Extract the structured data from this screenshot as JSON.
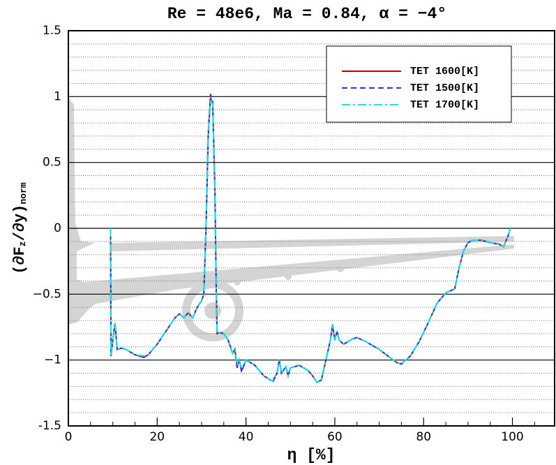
{
  "chart_data": {
    "type": "line",
    "title": "Re = 48e6, Ma = 0.84, α = −4°",
    "xlabel": "η [%]",
    "ylabel_parts": [
      "(∂F",
      "z",
      "/∂y)",
      "norm"
    ],
    "x": [
      9.5,
      9.6,
      10,
      10.5,
      11,
      12,
      13,
      15,
      17,
      18,
      20,
      22,
      24,
      25,
      26,
      27,
      28,
      29,
      30,
      30.5,
      31,
      31.5,
      32,
      32.5,
      33,
      33.3,
      33.5,
      34,
      35,
      36,
      37,
      37.5,
      38,
      38.5,
      39,
      40,
      41,
      42,
      43,
      44,
      45,
      46,
      47,
      47.5,
      48,
      49,
      49.5,
      50,
      51,
      52,
      53,
      54,
      55,
      56,
      57,
      58,
      59,
      59.5,
      60,
      60.5,
      61,
      62,
      63,
      64,
      65,
      67,
      70,
      72,
      74,
      75,
      77,
      79,
      81,
      83,
      85,
      87,
      88,
      89,
      90,
      91,
      93,
      95,
      97,
      98,
      99,
      99.5
    ],
    "series": [
      {
        "name": "TET 1600[K]",
        "color": "#c00000",
        "dash": "solid",
        "values": [
          0,
          -0.97,
          -0.85,
          -0.72,
          -0.92,
          -0.91,
          -0.92,
          -0.96,
          -0.98,
          -0.96,
          -0.88,
          -0.78,
          -0.68,
          -0.65,
          -0.68,
          -0.64,
          -0.68,
          -0.6,
          -0.55,
          -0.5,
          0,
          0.7,
          0.99,
          0.95,
          0.3,
          -0.45,
          -0.8,
          -0.79,
          -0.8,
          -0.85,
          -0.95,
          -0.92,
          -1.05,
          -1.0,
          -1.08,
          -1.0,
          -1.02,
          -1.04,
          -1.08,
          -1.12,
          -1.14,
          -1.16,
          -1.1,
          -1.0,
          -1.1,
          -1.05,
          -1.12,
          -1.06,
          -1.05,
          -1.04,
          -1.06,
          -1.08,
          -1.12,
          -1.17,
          -1.15,
          -1.0,
          -0.85,
          -0.73,
          -0.85,
          -0.78,
          -0.85,
          -0.88,
          -0.86,
          -0.84,
          -0.83,
          -0.86,
          -0.92,
          -0.97,
          -1.02,
          -1.03,
          -0.97,
          -0.86,
          -0.72,
          -0.57,
          -0.49,
          -0.46,
          -0.3,
          -0.17,
          -0.11,
          -0.09,
          -0.09,
          -0.11,
          -0.12,
          -0.14,
          -0.06,
          0
        ]
      },
      {
        "name": "TET 1500[K]",
        "color": "#3030e0",
        "dash": "dash",
        "values": [
          0,
          -0.97,
          -0.85,
          -0.72,
          -0.92,
          -0.91,
          -0.92,
          -0.96,
          -0.98,
          -0.96,
          -0.88,
          -0.78,
          -0.68,
          -0.65,
          -0.68,
          -0.64,
          -0.68,
          -0.6,
          -0.55,
          -0.5,
          0,
          0.72,
          1.02,
          0.97,
          0.3,
          -0.45,
          -0.8,
          -0.79,
          -0.8,
          -0.85,
          -0.95,
          -0.92,
          -1.06,
          -1.0,
          -1.09,
          -1.0,
          -1.02,
          -1.04,
          -1.08,
          -1.12,
          -1.14,
          -1.17,
          -1.1,
          -1.0,
          -1.1,
          -1.05,
          -1.12,
          -1.06,
          -1.05,
          -1.04,
          -1.06,
          -1.08,
          -1.12,
          -1.17,
          -1.15,
          -1.0,
          -0.85,
          -0.73,
          -0.85,
          -0.78,
          -0.85,
          -0.88,
          -0.86,
          -0.84,
          -0.83,
          -0.86,
          -0.92,
          -0.97,
          -1.02,
          -1.03,
          -0.97,
          -0.86,
          -0.72,
          -0.57,
          -0.49,
          -0.46,
          -0.3,
          -0.17,
          -0.11,
          -0.09,
          -0.09,
          -0.11,
          -0.12,
          -0.14,
          -0.06,
          0
        ]
      },
      {
        "name": "TET 1700[K]",
        "color": "#00e5ee",
        "dash": "dashdot",
        "values": [
          0,
          -0.97,
          -0.85,
          -0.72,
          -0.92,
          -0.91,
          -0.92,
          -0.96,
          -0.97,
          -0.96,
          -0.88,
          -0.78,
          -0.68,
          -0.65,
          -0.68,
          -0.64,
          -0.68,
          -0.6,
          -0.55,
          -0.5,
          0,
          0.69,
          0.98,
          0.94,
          0.3,
          -0.45,
          -0.8,
          -0.79,
          -0.8,
          -0.85,
          -0.95,
          -0.92,
          -1.04,
          -1.0,
          -1.07,
          -1.0,
          -1.02,
          -1.04,
          -1.08,
          -1.12,
          -1.14,
          -1.16,
          -1.1,
          -1.0,
          -1.1,
          -1.05,
          -1.12,
          -1.06,
          -1.05,
          -1.04,
          -1.06,
          -1.08,
          -1.12,
          -1.17,
          -1.15,
          -1.0,
          -0.85,
          -0.73,
          -0.85,
          -0.78,
          -0.85,
          -0.88,
          -0.86,
          -0.84,
          -0.83,
          -0.86,
          -0.92,
          -0.97,
          -1.02,
          -1.03,
          -0.97,
          -0.86,
          -0.72,
          -0.57,
          -0.49,
          -0.46,
          -0.3,
          -0.17,
          -0.11,
          -0.09,
          -0.09,
          -0.11,
          -0.12,
          -0.14,
          -0.06,
          0
        ]
      }
    ],
    "xlim": [
      0,
      109.5
    ],
    "ylim": [
      -1.5,
      1.5
    ],
    "xticks": [
      0,
      20,
      40,
      60,
      80,
      100
    ],
    "yticks": [
      {
        "value": -1.5,
        "label": "-1.5"
      },
      {
        "value": -1,
        "label": "−1"
      },
      {
        "value": -0.5,
        "label": "−0.5"
      },
      0,
      0.5,
      1,
      1.5
    ],
    "y_minor_ticks": [
      -1.4,
      -1.3,
      -1.2,
      -1.1,
      -0.9,
      -0.8,
      -0.7,
      -0.6,
      -0.4,
      -0.3,
      -0.2,
      -0.1,
      0.1,
      0.2,
      0.3,
      0.4,
      0.6,
      0.7,
      0.8,
      0.9,
      1.1,
      1.2,
      1.3,
      1.4
    ],
    "x_minor_ticks": [
      5,
      10,
      15,
      25,
      30,
      35,
      45,
      50,
      55,
      65,
      70,
      75,
      85,
      90,
      95,
      105
    ],
    "grid": true,
    "legend": "upper right"
  }
}
